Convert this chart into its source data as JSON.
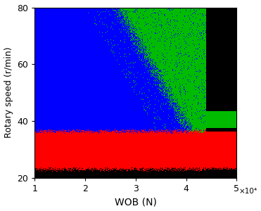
{
  "xlabel": "WOB (N)",
  "ylabel": "Rotary speed (r/min)",
  "xlim": [
    10000,
    50000
  ],
  "ylim": [
    20,
    80
  ],
  "xticks": [
    10000,
    20000,
    30000,
    40000,
    50000
  ],
  "xticklabels": [
    "1",
    "2",
    "3",
    "4",
    "5"
  ],
  "yticks": [
    20,
    40,
    60,
    80
  ],
  "x_scale_label": "×10⁴",
  "colors": {
    "black": "#000000",
    "red": "#ff0000",
    "blue": "#0000ff",
    "green": "#00bb00"
  },
  "figsize": [
    3.71,
    3.0
  ],
  "dpi": 100
}
